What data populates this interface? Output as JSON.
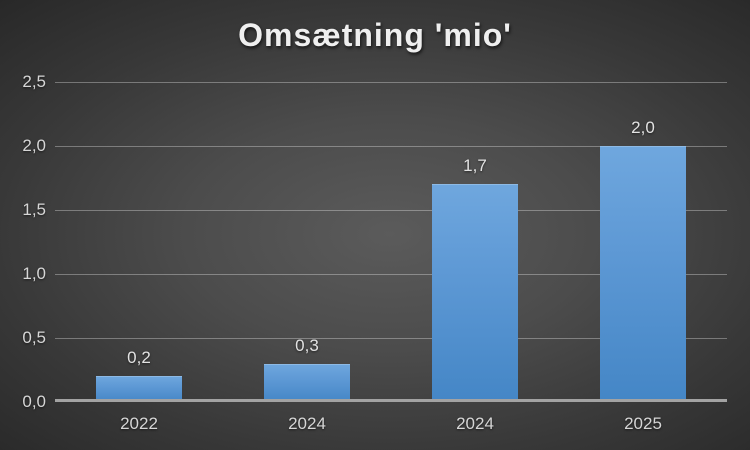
{
  "title": "Omsætning 'mio'",
  "chart_data": {
    "type": "bar",
    "title": "Omsætning 'mio'",
    "categories": [
      "2022",
      "2024",
      "2024",
      "2025"
    ],
    "values": [
      0.2,
      0.3,
      1.7,
      2.0
    ],
    "value_labels": [
      "0,2",
      "0,3",
      "1,7",
      "2,0"
    ],
    "series_color_top": "#6fa7de",
    "series_color_bottom": "#4486c6",
    "xlabel": "",
    "ylabel": "",
    "ylim": [
      0,
      2.5
    ],
    "y_tick_step": 0.5,
    "y_tick_labels_top_down": [
      "2,5",
      "2,0",
      "1,5",
      "1,0",
      "0,5",
      "0,0"
    ],
    "decimal_separator": ",",
    "grid": true,
    "legend": false,
    "background_center": "#575757",
    "background_edge": "#242424",
    "gridline_color": "#8a8a8a",
    "axis_line_color": "#a3a3a3",
    "title_color": "#efefef",
    "label_color": "#d6d6d6"
  }
}
